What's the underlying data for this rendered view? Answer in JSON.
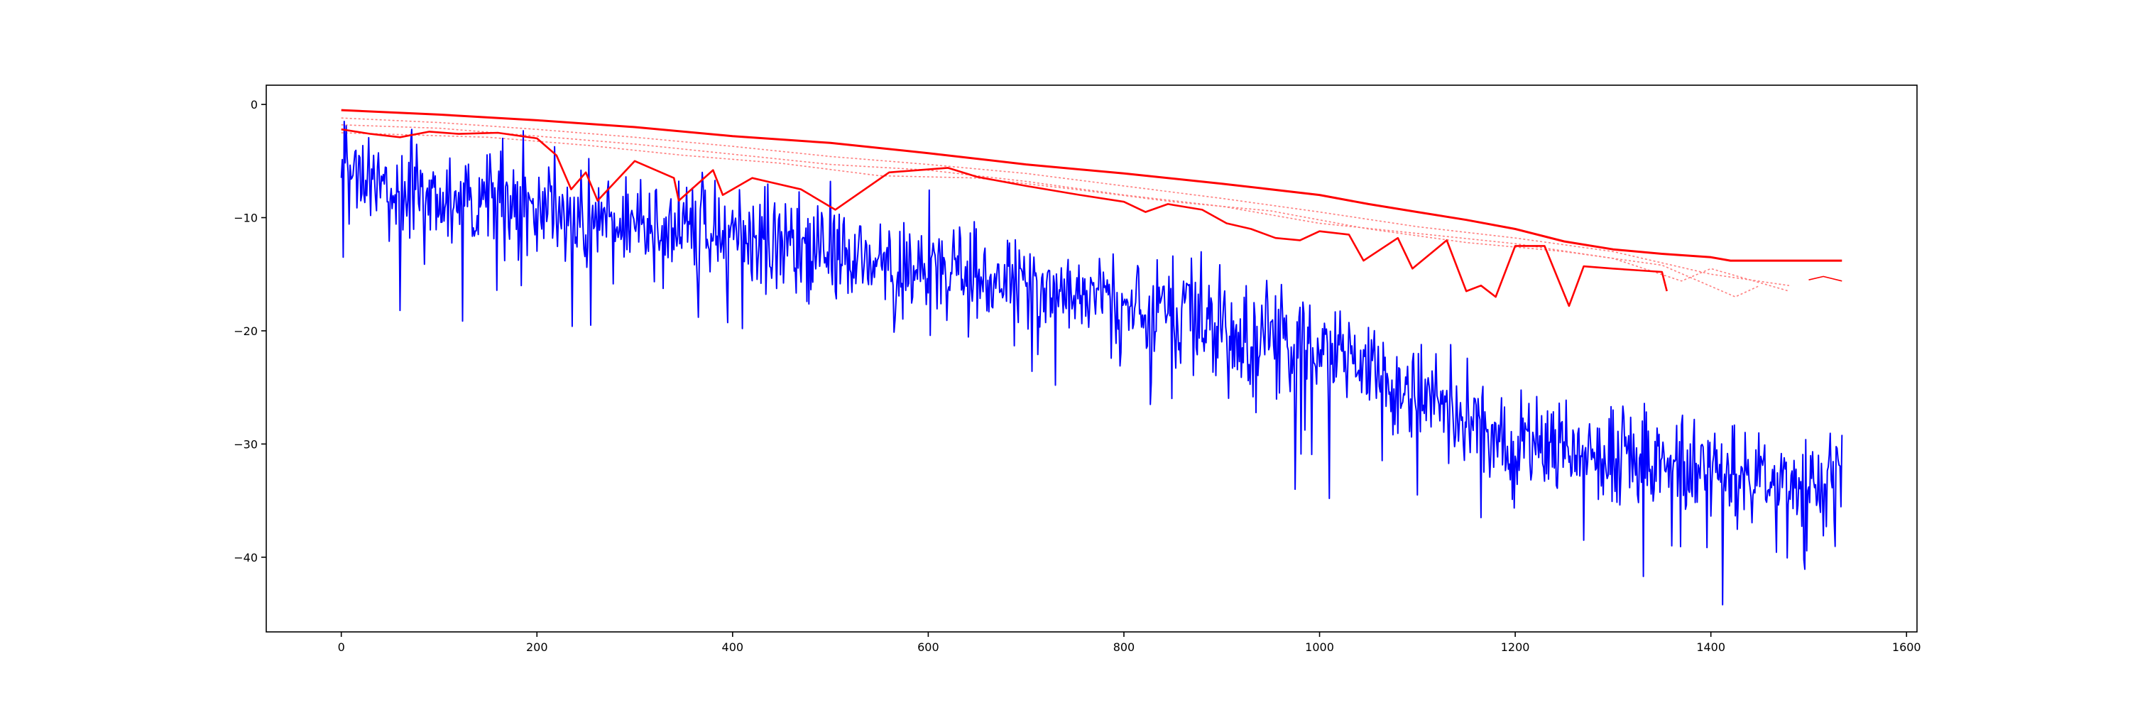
{
  "chart_data": {
    "type": "line",
    "title": "",
    "xlabel": "",
    "ylabel": "",
    "xlim": [
      -76.7,
      1610.7
    ],
    "ylim": [
      -46.6,
      1.7
    ],
    "xticks": [
      0,
      200,
      400,
      600,
      800,
      1000,
      1200,
      1400,
      1600
    ],
    "yticks": [
      0,
      -10,
      -20,
      -30,
      -40
    ],
    "grid": false,
    "legend": "none",
    "colors": {
      "upper_envelope": "#ff0000",
      "red_main": "#ff0000",
      "red_faint": "#ff7f7f",
      "blue": "#0000ff",
      "axes": "#000000",
      "background": "#ffffff"
    },
    "series": [
      {
        "color": "#ff0000",
        "style": "thick-solid",
        "x": [
          0,
          100,
          200,
          300,
          400,
          500,
          600,
          700,
          800,
          900,
          1000,
          1050,
          1100,
          1150,
          1200,
          1250,
          1300,
          1350,
          1400,
          1420,
          1534
        ],
        "y": [
          -0.5,
          -0.9,
          -1.4,
          -2.0,
          -2.8,
          -3.4,
          -4.3,
          -5.3,
          -6.1,
          -7.0,
          -8.0,
          -8.8,
          -9.5,
          -10.2,
          -11.0,
          -12.1,
          -12.8,
          -13.2,
          -13.5,
          -13.8,
          -13.8
        ]
      },
      {
        "color": "#ff0000",
        "style": "solid-dips",
        "x": [
          0,
          30,
          60,
          90,
          120,
          160,
          200,
          220,
          235,
          250,
          262,
          300,
          340,
          345,
          380,
          390,
          420,
          470,
          505,
          560,
          620,
          650,
          700,
          755,
          800,
          822,
          845,
          880,
          905,
          930,
          955,
          980,
          1000,
          1030,
          1045,
          1080,
          1095,
          1130,
          1150,
          1165,
          1180,
          1200,
          1230,
          1255,
          1270,
          1300,
          1350,
          1355
        ],
        "y": [
          -2.2,
          -2.6,
          -2.9,
          -2.4,
          -2.6,
          -2.5,
          -3.0,
          -4.5,
          -7.5,
          -6.0,
          -8.5,
          -5.0,
          -6.5,
          -8.5,
          -5.8,
          -8.0,
          -6.5,
          -7.5,
          -9.3,
          -6.0,
          -5.6,
          -6.4,
          -7.2,
          -8.0,
          -8.6,
          -9.5,
          -8.8,
          -9.3,
          -10.5,
          -11.0,
          -11.8,
          -12.0,
          -11.2,
          -11.5,
          -13.8,
          -11.8,
          -14.5,
          -12.0,
          -16.5,
          -16.0,
          -17.0,
          -12.5,
          -12.5,
          -17.8,
          -14.3,
          -14.5,
          -14.8,
          -16.5
        ]
      },
      {
        "color": "#ff7f7f",
        "style": "faint-dotted",
        "x": [
          0,
          100,
          200,
          300,
          400,
          500,
          600,
          700,
          800,
          900,
          1000,
          1100,
          1200,
          1300,
          1400,
          1480
        ],
        "y": [
          -1.2,
          -1.6,
          -2.2,
          -2.9,
          -3.7,
          -4.6,
          -5.3,
          -6.1,
          -7.2,
          -8.3,
          -9.5,
          -10.8,
          -11.8,
          -13.0,
          -15.0,
          -16.0
        ]
      },
      {
        "color": "#ff7f7f",
        "style": "faint-dotted",
        "x": [
          0,
          100,
          200,
          300,
          400,
          500,
          600,
          700,
          800,
          900,
          1000,
          1100,
          1200,
          1300,
          1370,
          1400,
          1480
        ],
        "y": [
          -1.8,
          -2.1,
          -2.8,
          -3.5,
          -4.4,
          -5.3,
          -5.8,
          -6.8,
          -8.0,
          -9.0,
          -10.5,
          -11.4,
          -12.3,
          -13.6,
          -15.6,
          -14.5,
          -16.5
        ]
      },
      {
        "color": "#ff7f7f",
        "style": "faint-dotted",
        "x": [
          0,
          150,
          250,
          350,
          450,
          550,
          650,
          750,
          850,
          950,
          1050,
          1150,
          1250,
          1350,
          1425,
          1450
        ],
        "y": [
          -2.5,
          -2.9,
          -3.6,
          -4.5,
          -5.2,
          -6.3,
          -6.5,
          -7.5,
          -8.6,
          -9.4,
          -11.0,
          -12.2,
          -13.0,
          -14.2,
          -17.0,
          -16.0
        ]
      },
      {
        "color": "#ff0000",
        "style": "thin-tail",
        "x": [
          1500,
          1515,
          1534
        ],
        "y": [
          -15.5,
          -15.2,
          -15.6
        ]
      },
      {
        "color": "#0000ff",
        "style": "noisy",
        "generated": true,
        "x_range": [
          0,
          1534
        ],
        "trend": {
          "x": [
            0,
            200,
            400,
            600,
            800,
            1000,
            1200,
            1400,
            1534
          ],
          "y": [
            -7.0,
            -9.2,
            -11.5,
            -14.2,
            -17.5,
            -21.5,
            -29.5,
            -32.5,
            -33.5
          ]
        },
        "spikes": [
          {
            "x": 2,
            "y": -13.5
          },
          {
            "x": 60,
            "y": -18.2
          },
          {
            "x": 255,
            "y": -19.5
          },
          {
            "x": 410,
            "y": -19.8
          },
          {
            "x": 730,
            "y": -24.8
          },
          {
            "x": 975,
            "y": -34.0
          },
          {
            "x": 1100,
            "y": -34.5
          },
          {
            "x": 1165,
            "y": -36.5
          },
          {
            "x": 1270,
            "y": -38.5
          },
          {
            "x": 1360,
            "y": -39.0
          },
          {
            "x": 1412,
            "y": -44.2
          },
          {
            "x": 1495,
            "y": -40.2
          },
          {
            "x": 3,
            "y": -1.5
          },
          {
            "x": 72,
            "y": -2.2
          },
          {
            "x": 165,
            "y": -3.0
          }
        ]
      }
    ]
  }
}
